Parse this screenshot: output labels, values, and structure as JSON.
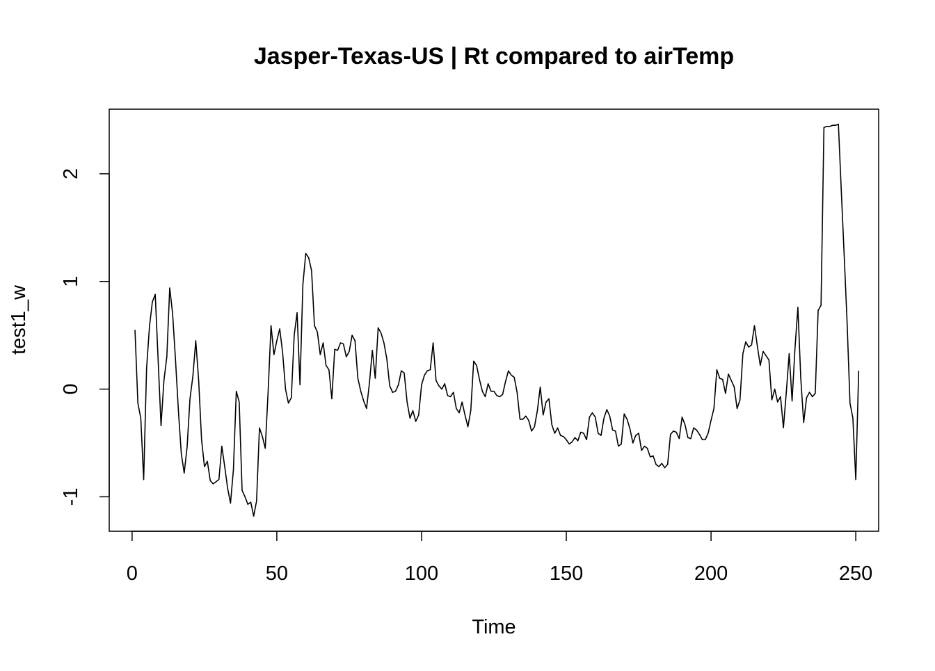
{
  "chart_data": {
    "type": "line",
    "title": "Jasper-Texas-US | Rt compared to airTemp",
    "xlabel": "Time",
    "ylabel": "test1_w",
    "xlim": [
      -7.9,
      257.9
    ],
    "ylim": [
      -1.32,
      2.6
    ],
    "x_ticks": [
      0,
      50,
      100,
      150,
      200,
      250
    ],
    "y_ticks": [
      -1,
      0,
      1,
      2
    ],
    "x_tick_labels": [
      "0",
      "50",
      "100",
      "150",
      "200",
      "250"
    ],
    "y_tick_labels": [
      "-1",
      "0",
      "1",
      "2"
    ],
    "grid": false,
    "legend": "none",
    "line_color": "#000000",
    "x_start": 1,
    "series": [
      {
        "values": [
          0.55,
          -0.13,
          -0.27,
          -0.84,
          0.19,
          0.58,
          0.81,
          0.88,
          0.27,
          -0.34,
          0.08,
          0.3,
          0.94,
          0.7,
          0.27,
          -0.2,
          -0.6,
          -0.78,
          -0.54,
          -0.09,
          0.12,
          0.45,
          0.08,
          -0.47,
          -0.72,
          -0.67,
          -0.85,
          -0.88,
          -0.86,
          -0.84,
          -0.53,
          -0.72,
          -0.92,
          -1.06,
          -0.75,
          -0.02,
          -0.12,
          -0.94,
          -1.0,
          -1.07,
          -1.05,
          -1.18,
          -1.04,
          -0.36,
          -0.44,
          -0.55,
          -0.02,
          0.59,
          0.32,
          0.45,
          0.56,
          0.34,
          0.0,
          -0.13,
          -0.08,
          0.5,
          0.71,
          0.04,
          0.97,
          1.26,
          1.22,
          1.1,
          0.59,
          0.53,
          0.32,
          0.43,
          0.22,
          0.18,
          -0.09,
          0.37,
          0.36,
          0.43,
          0.42,
          0.3,
          0.35,
          0.5,
          0.45,
          0.1,
          -0.02,
          -0.11,
          -0.18,
          0.06,
          0.36,
          0.1,
          0.57,
          0.52,
          0.43,
          0.28,
          0.03,
          -0.03,
          -0.02,
          0.04,
          0.17,
          0.15,
          -0.12,
          -0.27,
          -0.2,
          -0.3,
          -0.24,
          0.04,
          0.13,
          0.17,
          0.18,
          0.43,
          0.08,
          0.03,
          0.0,
          0.05,
          -0.06,
          -0.07,
          -0.03,
          -0.18,
          -0.22,
          -0.12,
          -0.24,
          -0.35,
          -0.2,
          0.26,
          0.22,
          0.09,
          -0.02,
          -0.07,
          0.05,
          -0.02,
          -0.02,
          -0.06,
          -0.07,
          -0.05,
          0.07,
          0.17,
          0.13,
          0.11,
          -0.03,
          -0.28,
          -0.28,
          -0.25,
          -0.29,
          -0.39,
          -0.35,
          -0.2,
          0.02,
          -0.24,
          -0.12,
          -0.09,
          -0.33,
          -0.41,
          -0.36,
          -0.43,
          -0.44,
          -0.47,
          -0.51,
          -0.49,
          -0.45,
          -0.48,
          -0.4,
          -0.41,
          -0.47,
          -0.26,
          -0.22,
          -0.26,
          -0.41,
          -0.43,
          -0.27,
          -0.19,
          -0.25,
          -0.38,
          -0.39,
          -0.53,
          -0.51,
          -0.23,
          -0.28,
          -0.37,
          -0.5,
          -0.43,
          -0.41,
          -0.57,
          -0.53,
          -0.55,
          -0.63,
          -0.62,
          -0.7,
          -0.72,
          -0.69,
          -0.73,
          -0.7,
          -0.42,
          -0.39,
          -0.4,
          -0.46,
          -0.26,
          -0.33,
          -0.45,
          -0.46,
          -0.36,
          -0.38,
          -0.42,
          -0.47,
          -0.47,
          -0.41,
          -0.29,
          -0.18,
          0.18,
          0.1,
          0.09,
          -0.04,
          0.14,
          0.08,
          0.02,
          -0.18,
          -0.1,
          0.33,
          0.44,
          0.39,
          0.41,
          0.59,
          0.4,
          0.22,
          0.35,
          0.31,
          0.27,
          -0.1,
          0.0,
          -0.12,
          -0.07,
          -0.36,
          -0.03,
          0.33,
          -0.11,
          0.38,
          0.76,
          0.1,
          -0.31,
          -0.08,
          -0.03,
          -0.07,
          -0.04,
          0.73,
          0.78,
          2.43,
          2.44,
          2.44,
          2.45,
          2.45,
          2.46,
          1.84,
          1.24,
          0.62,
          -0.13,
          -0.27,
          -0.84,
          0.17
        ]
      }
    ]
  }
}
